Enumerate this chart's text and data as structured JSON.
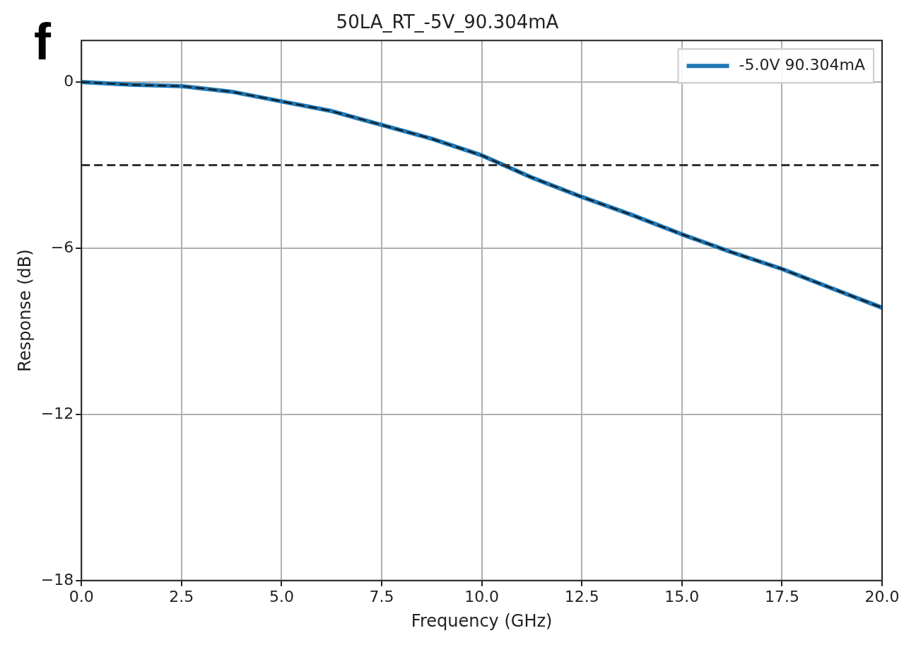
{
  "chart_data": {
    "type": "line",
    "title": "50LA_RT_-5V_90.304mA",
    "xlabel": "Frequency (GHz)",
    "ylabel": "Response (dB)",
    "annotations": [
      "f"
    ],
    "x": [
      0,
      1.25,
      2.5,
      3.75,
      5,
      6.25,
      7.5,
      8.75,
      10,
      11.25,
      12.5,
      13.75,
      15,
      16.25,
      17.5,
      18.75,
      20
    ],
    "series": [
      {
        "name": "-5.0V 90.304mA",
        "color": "#1f77b4",
        "values": [
          0,
          -0.1,
          -0.15,
          -0.35,
          -0.7,
          -1.05,
          -1.55,
          -2.05,
          -2.65,
          -3.45,
          -4.15,
          -4.8,
          -5.5,
          -6.15,
          -6.75,
          -7.45,
          -8.15
        ]
      },
      {
        "color": "#111111",
        "line_style": "dashed",
        "values": [
          0,
          -0.1,
          -0.15,
          -0.35,
          -0.7,
          -1.05,
          -1.55,
          -2.05,
          -2.65,
          -3.45,
          -4.15,
          -4.8,
          -5.5,
          -6.15,
          -6.75,
          -7.45,
          -8.15
        ]
      }
    ],
    "ref_lines": [
      {
        "axis": "y",
        "value": -3,
        "color": "#333333",
        "line_style": "dashed"
      }
    ],
    "xlim": [
      0,
      20
    ],
    "xticks": [
      {
        "value": 0,
        "label": "0.0"
      },
      {
        "value": 2.5,
        "label": "2.5"
      },
      {
        "value": 5,
        "label": "5.0"
      },
      {
        "value": 7.5,
        "label": "7.5"
      },
      {
        "value": 10,
        "label": "10.0"
      },
      {
        "value": 12.5,
        "label": "12.5"
      },
      {
        "value": 15,
        "label": "15.0"
      },
      {
        "value": 17.5,
        "label": "17.5"
      },
      {
        "value": 20,
        "label": "20.0"
      }
    ],
    "ylim": [
      -18,
      1.5
    ],
    "yticks": [
      {
        "value": -18,
        "label": "−18"
      },
      {
        "value": -12,
        "label": "−12"
      },
      {
        "value": -6,
        "label": "−6"
      },
      {
        "value": 0,
        "label": "0"
      }
    ],
    "grid": true,
    "legend": "top right",
    "marker": "none"
  }
}
